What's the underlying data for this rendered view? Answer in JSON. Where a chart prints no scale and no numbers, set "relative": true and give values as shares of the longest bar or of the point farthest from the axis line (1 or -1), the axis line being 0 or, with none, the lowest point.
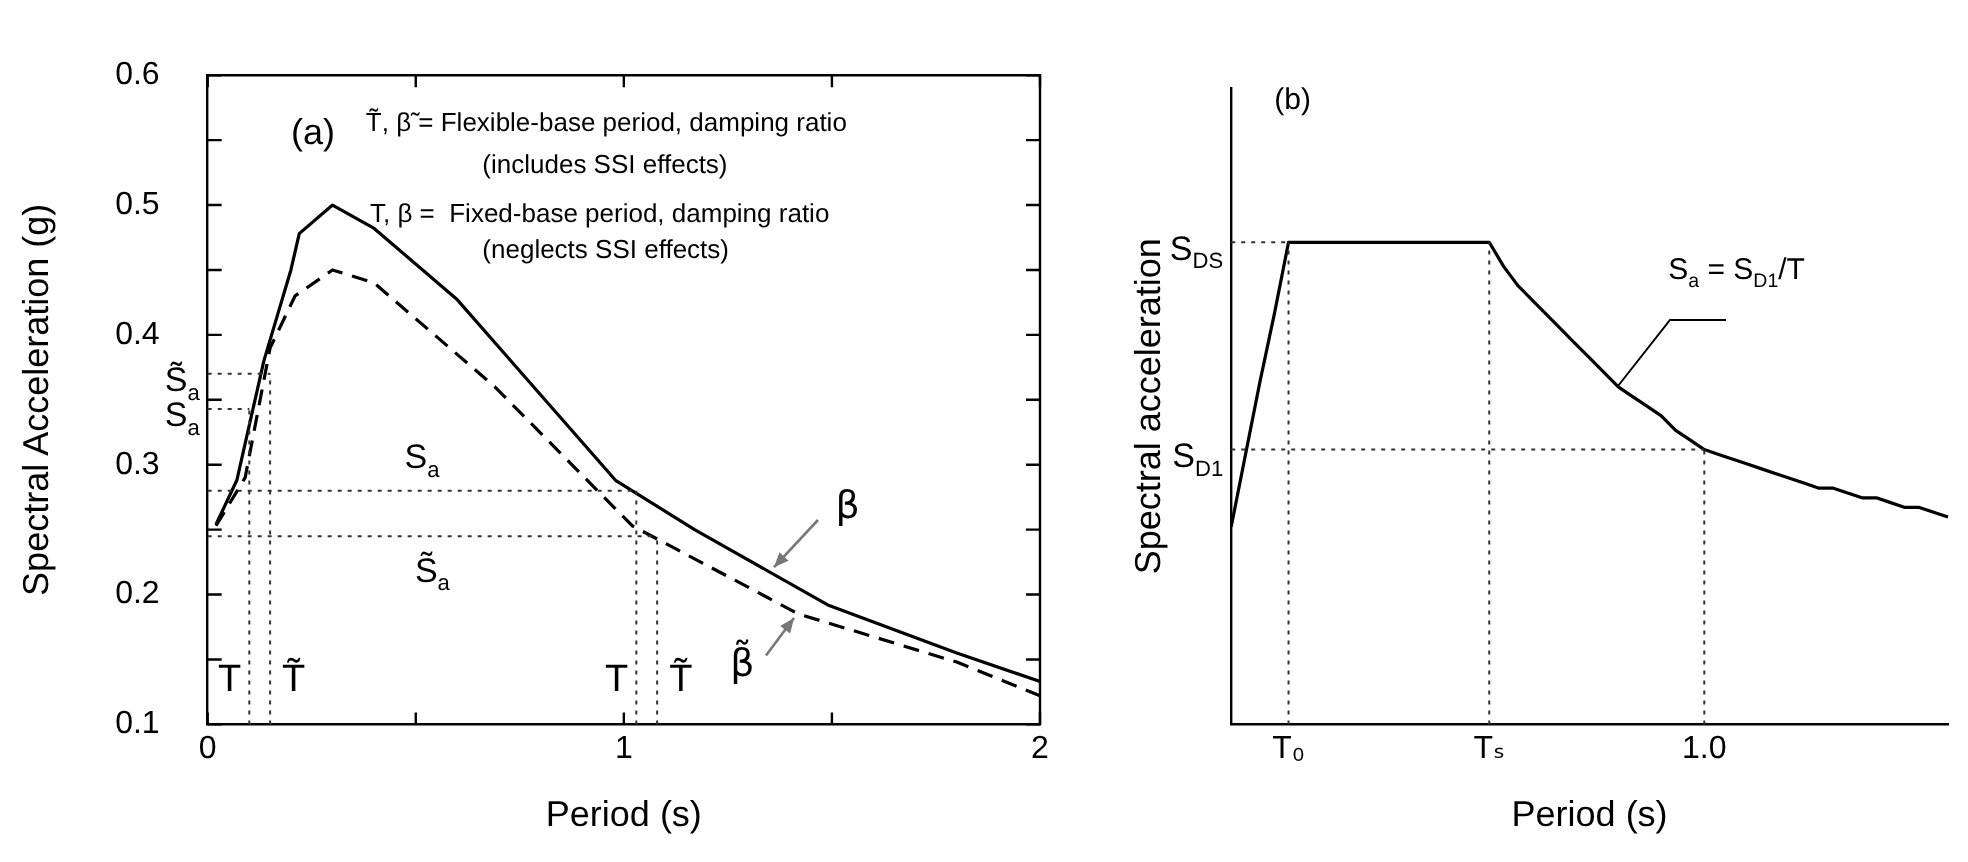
{
  "chart_data": [
    {
      "type": "line",
      "xlabel": "Period (s)",
      "ylabel": "Spectral Acceleration (g)",
      "xlim": [
        0,
        2
      ],
      "ylim": [
        0.1,
        0.6
      ],
      "xticks": [
        0,
        {
          "value": 0.5,
          "label": null
        },
        1,
        {
          "value": 1.5,
          "label": null
        },
        2
      ],
      "yticks": [
        0.1,
        {
          "value": 0.15,
          "label": null
        },
        0.2,
        {
          "value": 0.25,
          "label": null
        },
        0.3,
        {
          "value": 0.35,
          "label": null
        },
        0.4,
        {
          "value": 0.45,
          "label": null
        },
        0.5,
        {
          "value": 0.55,
          "label": null
        },
        0.6
      ],
      "marker": "none",
      "series": [
        {
          "name": "β",
          "color": "#000000",
          "line_style": "solid",
          "x": [
            0.02,
            0.07,
            0.135,
            0.2,
            0.22,
            0.3,
            0.4,
            0.6,
            0.98,
            1.17,
            1.49,
            1.8,
            2.0
          ],
          "values": [
            0.254,
            0.288,
            0.38,
            0.45,
            0.478,
            0.5,
            0.482,
            0.427,
            0.288,
            0.25,
            0.192,
            0.155,
            0.133
          ]
        },
        {
          "name": "β̃",
          "color": "#000000",
          "line_style": "dashed",
          "x": [
            0.02,
            0.09,
            0.15,
            0.21,
            0.3,
            0.4,
            0.69,
            1.02,
            1.42,
            1.8,
            2.0
          ],
          "values": [
            0.253,
            0.29,
            0.39,
            0.43,
            0.45,
            0.44,
            0.36,
            0.253,
            0.185,
            0.148,
            0.122
          ]
        }
      ],
      "ref_lines": [
        {
          "axis": "x",
          "value": 0.1,
          "label": "T"
        },
        {
          "axis": "x",
          "value": 0.15,
          "label": "T̃"
        },
        {
          "axis": "x",
          "value": 1.03,
          "label": "T"
        },
        {
          "axis": "x",
          "value": 1.08,
          "label": "T̃"
        },
        {
          "axis": "y",
          "value": 0.343,
          "label": "S$_{a}$"
        },
        {
          "axis": "y",
          "value": 0.37,
          "label": "S̃$_{a}$"
        },
        {
          "axis": "y",
          "value": 0.28,
          "label": "S$_{a}$"
        },
        {
          "axis": "y",
          "value": 0.245,
          "label": "S̃$_{a}$"
        }
      ],
      "annotations": [
        "(a)",
        "T̃, β̃ = Flexible-base period, damping ratio",
        "(includes SSI effects)",
        "T, β =  Fixed-base period, damping ratio",
        "(neglects SSI effects)"
      ]
    },
    {
      "type": "line",
      "relative": true,
      "xlabel": "Period (s)",
      "ylabel": "Spectral acceleration",
      "categories": [
        null,
        null,
        null,
        null,
        "T₀",
        null,
        null,
        null,
        null,
        null,
        null,
        null,
        null,
        null,
        null,
        null,
        null,
        null,
        "Tₛ",
        null,
        null,
        null,
        null,
        null,
        null,
        null,
        null,
        null,
        null,
        null,
        null,
        null,
        null,
        "1.0",
        null,
        null,
        null,
        null,
        null,
        null,
        null,
        null,
        null,
        null,
        null,
        null,
        null,
        null,
        null,
        null,
        null
      ],
      "marker": "none",
      "series": [
        {
          "color": "#000000",
          "line_style": "solid",
          "values": [
            0.41,
            0.56,
            0.71,
            0.85,
            1,
            1,
            1,
            1,
            1,
            1,
            1,
            1,
            1,
            1,
            1,
            1,
            1,
            1,
            1,
            0.95,
            0.91,
            0.88,
            0.85,
            0.82,
            0.79,
            0.76,
            0.73,
            0.7,
            0.68,
            0.66,
            0.64,
            0.61,
            0.59,
            0.57,
            0.56,
            0.55,
            0.54,
            0.53,
            0.52,
            0.51,
            0.5,
            0.49,
            0.49,
            0.48,
            0.47,
            0.47,
            0.46,
            0.45,
            0.45,
            0.44,
            0.43
          ]
        }
      ],
      "ref_lines": [
        {
          "axis": "x",
          "value": "T₀"
        },
        {
          "axis": "x",
          "value": "1.0"
        },
        {
          "axis": "x",
          "value": "Tₛ"
        },
        {
          "axis": "y",
          "value": 1,
          "label": "S$_{DS}$"
        },
        {
          "axis": "y",
          "value": 0.57,
          "label": "S$_{D1}$"
        }
      ],
      "annotations": [
        "(b)",
        "S$_{a}$ = S$_{D1}$/T"
      ]
    }
  ]
}
